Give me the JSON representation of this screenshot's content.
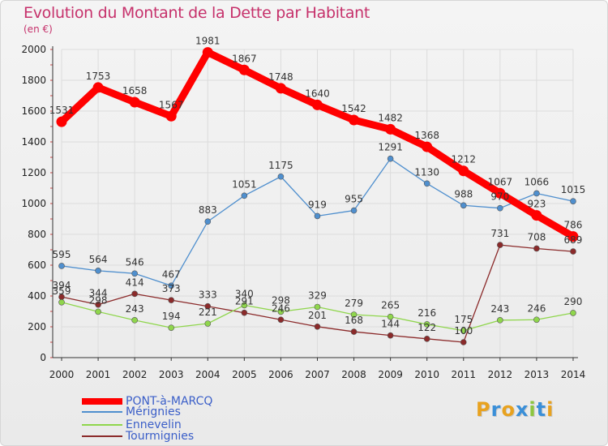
{
  "chart_data": {
    "type": "line",
    "title": "Evolution du Montant de la Dette par Habitant",
    "subtitle": "(en €)",
    "categories": [
      "2000",
      "2001",
      "2002",
      "2003",
      "2004",
      "2005",
      "2006",
      "2007",
      "2008",
      "2009",
      "2010",
      "2011",
      "2012",
      "2013",
      "2014"
    ],
    "ylim": [
      0,
      2000
    ],
    "yticks": [
      0,
      200,
      400,
      600,
      800,
      1000,
      1200,
      1400,
      1600,
      1800,
      2000
    ],
    "grid": true,
    "legend_position": "bottom-left",
    "series": [
      {
        "name": "PONT-à-MARCQ",
        "color": "#ff0000",
        "values": [
          1531,
          1753,
          1658,
          1567,
          1981,
          1867,
          1748,
          1640,
          1542,
          1482,
          1368,
          1212,
          1067,
          923,
          786
        ]
      },
      {
        "name": "Mérignies",
        "color": "#4f8fce",
        "values": [
          595,
          564,
          546,
          467,
          883,
          1051,
          1175,
          919,
          955,
          1291,
          1130,
          988,
          970,
          1066,
          1015
        ]
      },
      {
        "name": "Ennevelin",
        "color": "#8fd64c",
        "values": [
          359,
          298,
          243,
          194,
          221,
          340,
          298,
          329,
          279,
          265,
          216,
          175,
          243,
          246,
          290
        ]
      },
      {
        "name": "Tourmignies",
        "color": "#8b2a2a",
        "values": [
          394,
          344,
          414,
          373,
          333,
          291,
          246,
          201,
          168,
          144,
          122,
          100,
          731,
          708,
          689
        ]
      }
    ]
  },
  "brand": {
    "text": "Proxiti",
    "letter_colors": [
      "#e8a21f",
      "#3a8fd8",
      "#e8a21f",
      "#3a8fd8",
      "#8cc63f",
      "#3a8fd8",
      "#e8a21f"
    ]
  }
}
